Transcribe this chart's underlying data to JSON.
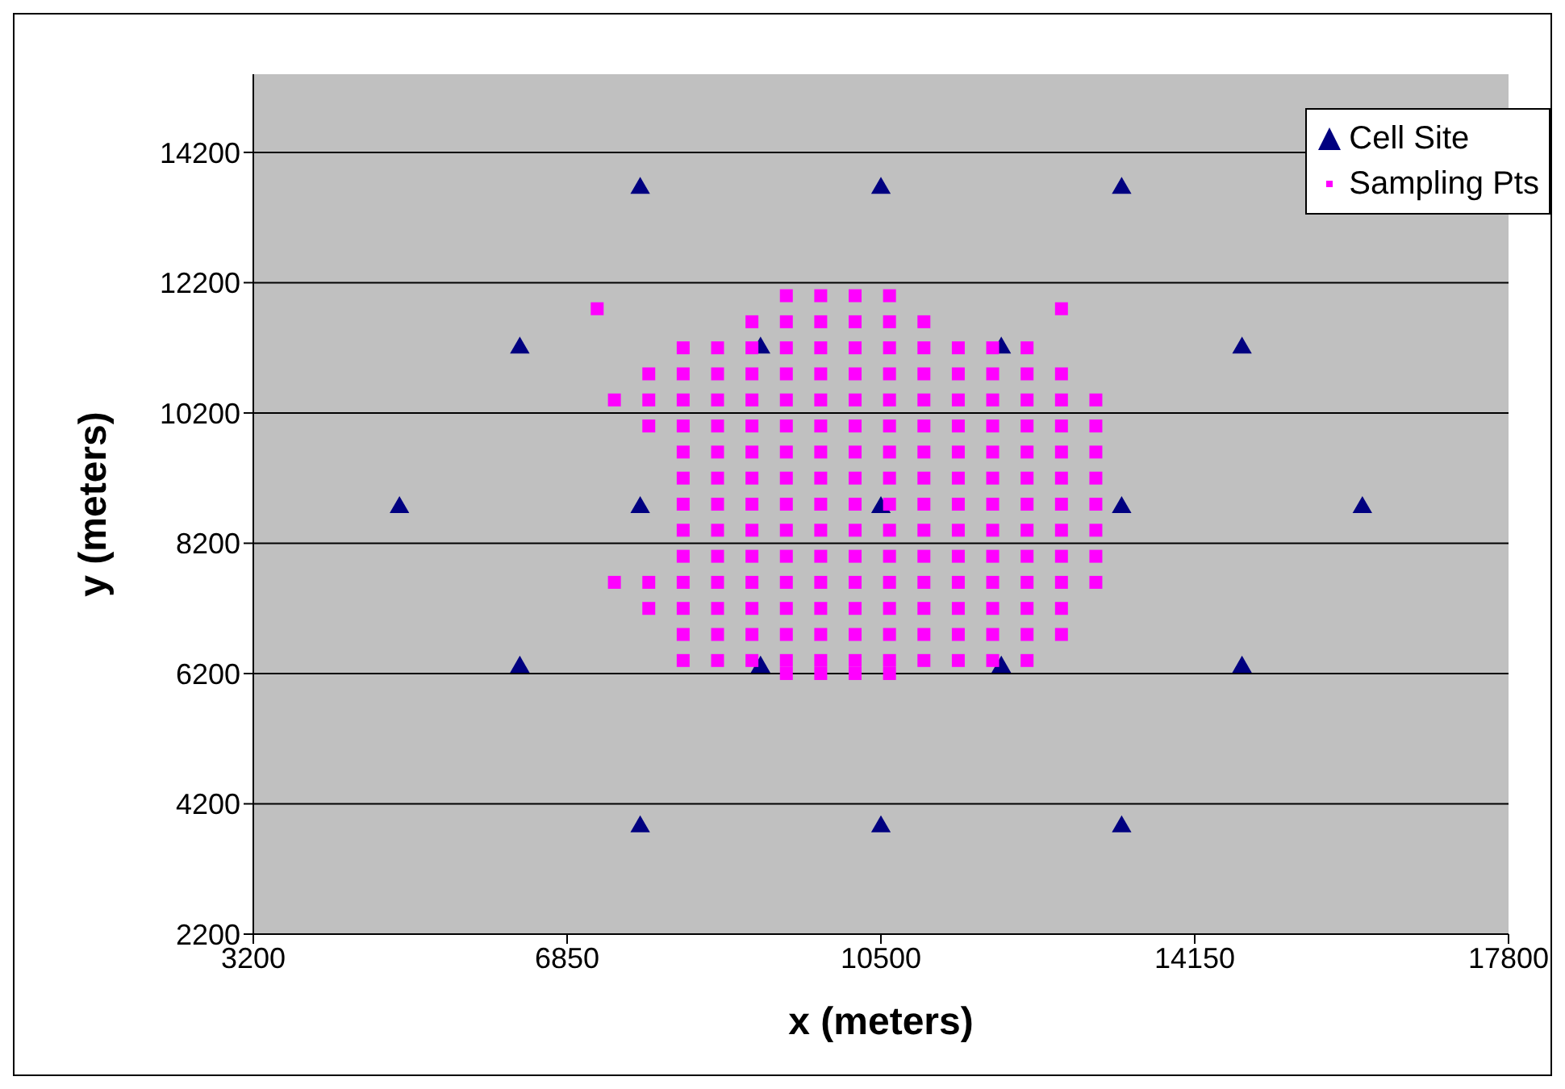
{
  "chart_data": {
    "type": "scatter",
    "xlabel": "x (meters)",
    "ylabel": "y (meters)",
    "xlim": [
      3200,
      17800
    ],
    "xticks": [
      3200,
      6850,
      10500,
      14150,
      17800
    ],
    "ylim": [
      2200,
      15400
    ],
    "yticks": [
      2200,
      4200,
      6200,
      8200,
      10200,
      12200,
      14200
    ],
    "grid": "y",
    "legend": "top right",
    "series": [
      {
        "name": "Cell Site",
        "color": "#000080",
        "marker": "triangle",
        "x": [
          7700,
          10500,
          13300,
          6300,
          9100,
          11900,
          14700,
          4900,
          7700,
          10500,
          13300,
          16100,
          6300,
          9100,
          11900,
          14700,
          7700,
          10500,
          13300
        ],
        "values": [
          13650,
          13650,
          13650,
          11200,
          11200,
          11200,
          11200,
          8750,
          8750,
          8750,
          8750,
          8750,
          6300,
          6300,
          6300,
          6300,
          3850,
          3850,
          3850
        ]
      },
      {
        "name": "Sampling Pts",
        "color": "#ff00ff",
        "marker": "square",
        "x": [
          9400,
          9800,
          10200,
          10600,
          9000,
          9400,
          9800,
          10200,
          10600,
          11000,
          8200,
          8600,
          9000,
          9400,
          9800,
          10200,
          10600,
          11000,
          11400,
          11800,
          12200,
          7800,
          8200,
          8600,
          9000,
          9400,
          9800,
          10200,
          10600,
          11000,
          11400,
          11800,
          12200,
          12600,
          7400,
          7800,
          8200,
          8600,
          9000,
          9400,
          9800,
          10200,
          10600,
          11000,
          11400,
          11800,
          12200,
          12600,
          13000,
          7800,
          8200,
          8600,
          9000,
          9400,
          9800,
          10200,
          10600,
          11000,
          11400,
          11800,
          12200,
          12600,
          13000,
          8200,
          8600,
          9000,
          9400,
          9800,
          10200,
          10600,
          11000,
          11400,
          11800,
          12200,
          12600,
          13000,
          8200,
          8600,
          9000,
          9400,
          9800,
          10200,
          10600,
          11000,
          11400,
          11800,
          12200,
          12600,
          13000,
          8200,
          8600,
          9000,
          9400,
          9800,
          10200,
          10600,
          11000,
          11400,
          11800,
          12200,
          12600,
          13000,
          8200,
          8600,
          9000,
          9400,
          9800,
          10200,
          10600,
          11000,
          11400,
          11800,
          12200,
          12600,
          13000,
          8200,
          8600,
          9000,
          9400,
          9800,
          10200,
          10600,
          11000,
          11400,
          11800,
          12200,
          12600,
          13000,
          7400,
          7800,
          8200,
          8600,
          9000,
          9400,
          9800,
          10200,
          10600,
          11000,
          11400,
          11800,
          12200,
          12600,
          13000,
          7800,
          8200,
          8600,
          9000,
          9400,
          9800,
          10200,
          10600,
          11000,
          11400,
          11800,
          12200,
          12600,
          8200,
          8600,
          9000,
          9400,
          9800,
          10200,
          10600,
          11000,
          11400,
          11800,
          12200,
          12600,
          8200,
          8600,
          9000,
          9400,
          9800,
          10200,
          10600,
          11000,
          11400,
          11800,
          12200,
          9400,
          9800,
          10200,
          10600,
          7200,
          12600
        ],
        "values": [
          12000,
          12000,
          12000,
          12000,
          11600,
          11600,
          11600,
          11600,
          11600,
          11600,
          11200,
          11200,
          11200,
          11200,
          11200,
          11200,
          11200,
          11200,
          11200,
          11200,
          11200,
          10800,
          10800,
          10800,
          10800,
          10800,
          10800,
          10800,
          10800,
          10800,
          10800,
          10800,
          10800,
          10800,
          10400,
          10400,
          10400,
          10400,
          10400,
          10400,
          10400,
          10400,
          10400,
          10400,
          10400,
          10400,
          10400,
          10400,
          10400,
          10000,
          10000,
          10000,
          10000,
          10000,
          10000,
          10000,
          10000,
          10000,
          10000,
          10000,
          10000,
          10000,
          10000,
          9600,
          9600,
          9600,
          9600,
          9600,
          9600,
          9600,
          9600,
          9600,
          9600,
          9600,
          9600,
          9600,
          9200,
          9200,
          9200,
          9200,
          9200,
          9200,
          9200,
          9200,
          9200,
          9200,
          9200,
          9200,
          9200,
          8800,
          8800,
          8800,
          8800,
          8800,
          8800,
          8800,
          8800,
          8800,
          8800,
          8800,
          8800,
          8800,
          8400,
          8400,
          8400,
          8400,
          8400,
          8400,
          8400,
          8400,
          8400,
          8400,
          8400,
          8400,
          8400,
          8000,
          8000,
          8000,
          8000,
          8000,
          8000,
          8000,
          8000,
          8000,
          8000,
          8000,
          8000,
          8000,
          7600,
          7600,
          7600,
          7600,
          7600,
          7600,
          7600,
          7600,
          7600,
          7600,
          7600,
          7600,
          7600,
          7600,
          7600,
          7200,
          7200,
          7200,
          7200,
          7200,
          7200,
          7200,
          7200,
          7200,
          7200,
          7200,
          7200,
          7200,
          6800,
          6800,
          6800,
          6800,
          6800,
          6800,
          6800,
          6800,
          6800,
          6800,
          6800,
          6800,
          6400,
          6400,
          6400,
          6400,
          6400,
          6400,
          6400,
          6400,
          6400,
          6400,
          6400,
          6200,
          6200,
          6200,
          6200,
          11800,
          11800
        ]
      }
    ]
  }
}
